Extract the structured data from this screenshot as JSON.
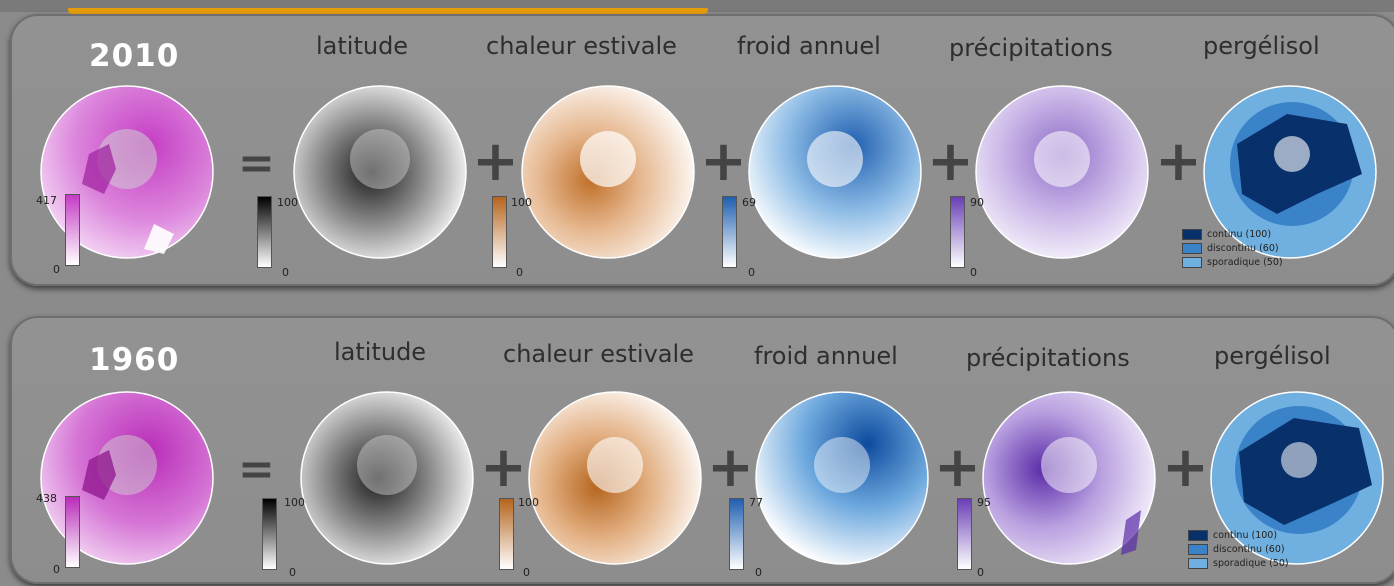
{
  "colors": {
    "index": "#c43cc4",
    "latitude": "#111111",
    "summer_heat": "#b5651d",
    "annual_cold": "#1f5fb0",
    "precipitation": "#6a3fb5",
    "permafrost_continuous": "#08306b",
    "permafrost_discontinuous": "#3b83c9",
    "permafrost_sporadic": "#6fb0e0"
  },
  "labels": {
    "latitude": "latitude",
    "summer_heat": "chaleur estivale",
    "annual_cold": "froid annuel",
    "precipitation": "précipitations",
    "permafrost": "pergélisol"
  },
  "operators": {
    "equals": "=",
    "plus": "+"
  },
  "legend": [
    {
      "label": "continu (100)",
      "color": "#08306b"
    },
    {
      "label": "discontinu (60)",
      "color": "#3b83c9"
    },
    {
      "label": "sporadique (50)",
      "color": "#6fb0e0"
    }
  ],
  "panels": [
    {
      "year": "2010",
      "index_max": "417",
      "index_min": "0",
      "latitude_max": "100",
      "latitude_min": "0",
      "summer_heat_max": "100",
      "summer_heat_min": "0",
      "annual_cold_max": "69",
      "annual_cold_min": "0",
      "precipitation_max": "90",
      "precipitation_min": "0"
    },
    {
      "year": "1960",
      "index_max": "438",
      "index_min": "0",
      "latitude_max": "100",
      "latitude_min": "0",
      "summer_heat_max": "100",
      "summer_heat_min": "0",
      "annual_cold_max": "77",
      "annual_cold_min": "0",
      "precipitation_max": "95",
      "precipitation_min": "0"
    }
  ]
}
